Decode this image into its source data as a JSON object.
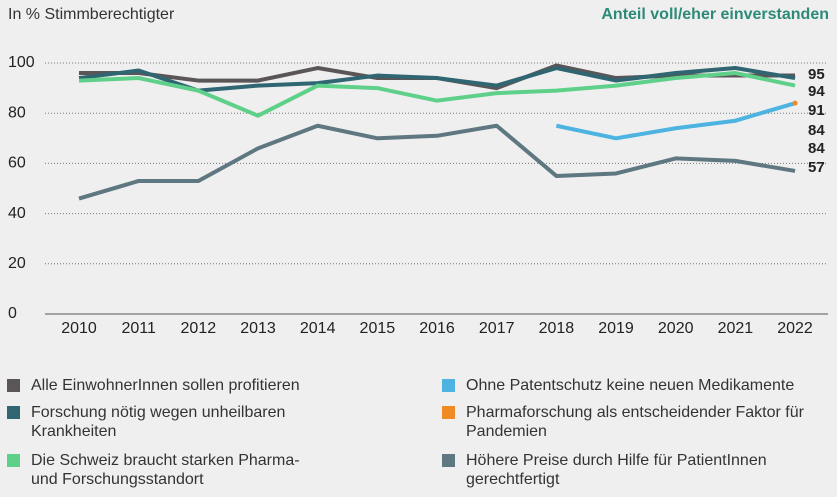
{
  "chart_data": {
    "type": "line",
    "title": "Anteil voll/eher einverstanden",
    "y_label": "In % Stimmberechtigter",
    "categories": [
      "2010",
      "2011",
      "2012",
      "2013",
      "2014",
      "2015",
      "2016",
      "2017",
      "2018",
      "2019",
      "2020",
      "2021",
      "2022"
    ],
    "series": [
      {
        "name": "Alle EinwohnerInnen sollen profitieren",
        "color": "#5a5556",
        "values": [
          96,
          96,
          93,
          93,
          98,
          94,
          94,
          90,
          99,
          94,
          95,
          95,
          95
        ]
      },
      {
        "name": "Forschung nötig wegen unheilbaren Krankheiten",
        "color": "#2f6672",
        "values": [
          94,
          97,
          89,
          91,
          92,
          95,
          94,
          91,
          98,
          93,
          96,
          98,
          94
        ]
      },
      {
        "name": "Die Schweiz braucht starken Pharma- und Forschungsstandort",
        "color": "#5fd08a",
        "values": [
          93,
          94,
          89,
          79,
          91,
          90,
          85,
          88,
          89,
          91,
          94,
          96,
          91
        ]
      },
      {
        "name": "Ohne Patentschutz keine neuen Medikamente",
        "color": "#4db3e0",
        "values": [
          null,
          null,
          null,
          null,
          null,
          null,
          null,
          null,
          75,
          70,
          74,
          77,
          84
        ]
      },
      {
        "name": "Pharmaforschung als entscheidender Faktor für Pandemien",
        "color": "#f08a24",
        "values": [
          null,
          null,
          null,
          null,
          null,
          null,
          null,
          null,
          null,
          null,
          null,
          null,
          84
        ]
      },
      {
        "name": "Höhere Preise durch Hilfe für PatientInnen gerechtfertigt",
        "color": "#5e7780",
        "values": [
          46,
          53,
          53,
          66,
          75,
          70,
          71,
          75,
          55,
          56,
          62,
          61,
          57
        ]
      }
    ],
    "ylim": [
      0,
      100
    ],
    "yticks": [
      0,
      20,
      40,
      60,
      80,
      100
    ],
    "grid": true
  }
}
